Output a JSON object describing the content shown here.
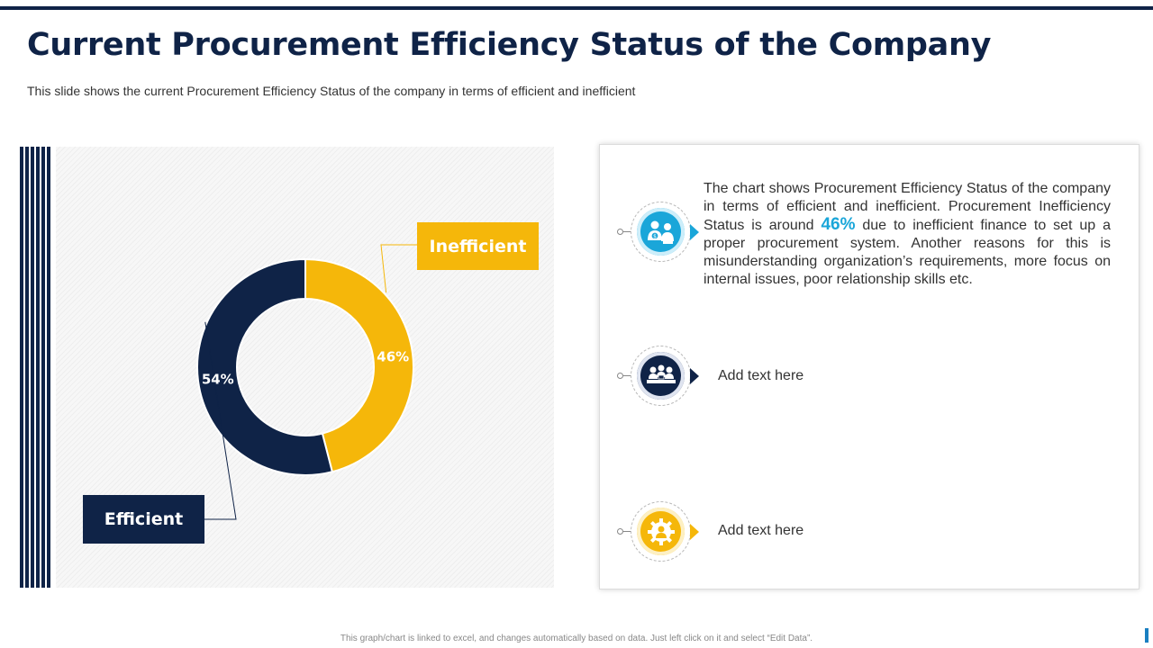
{
  "header": {
    "title": "Current Procurement Efficiency Status of the Company",
    "subtitle": "This slide shows the current Procurement Efficiency Status of the company in terms of efficient and inefficient"
  },
  "chart_data": {
    "type": "pie",
    "donut": true,
    "title": "",
    "slices": [
      {
        "name": "Inefficient",
        "value": 46,
        "label": "46%",
        "color": "#f5b70a"
      },
      {
        "name": "Efficient",
        "value": 54,
        "label": "54%",
        "color": "#0f2347"
      }
    ],
    "start_angle_deg": 0,
    "legend": "callout-labels"
  },
  "info_panel": {
    "items": [
      {
        "icon": "finance-team-icon",
        "color": "#1aa6d9",
        "text_before": "The chart shows Procurement Efficiency Status of the company in terms of efficient and inefficient. Procurement Inefficiency Status is around ",
        "highlight": "46%",
        "text_after": " due to inefficient finance to set up a proper procurement system. Another reasons for this is misunderstanding organization’s requirements, more focus on internal issues, poor relationship skills etc."
      },
      {
        "icon": "meeting-icon",
        "color": "#0f2347",
        "text": "Add text here"
      },
      {
        "icon": "gear-person-icon",
        "color": "#f5b70a",
        "text": "Add text here"
      }
    ]
  },
  "footer": {
    "note": "This graph/chart is linked to excel, and changes automatically based on data. Just left click on it and select “Edit Data”."
  }
}
